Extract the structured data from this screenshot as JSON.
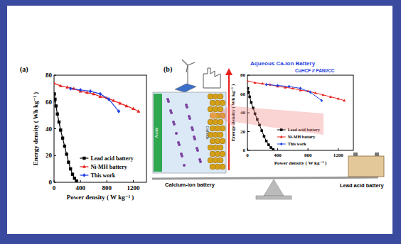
{
  "chart_data": [
    {
      "type": "line",
      "panel_label": "(a)",
      "x_label": "Power density ( W kg⁻¹ )",
      "y_label": "Energy density ( Wh kg⁻¹ )",
      "xlim": [
        0,
        1400
      ],
      "xticks": [
        0,
        400,
        800,
        1200
      ],
      "ylim": [
        0,
        80
      ],
      "yticks": [
        0,
        20,
        40,
        60,
        80
      ],
      "grid": false,
      "legend": "lower left",
      "series": [
        {
          "name": "Lead acid battery",
          "color": "#000000",
          "marker": "square",
          "x": [
            5,
            15,
            30,
            50,
            75,
            100,
            130,
            160,
            190,
            220,
            250,
            280,
            310,
            340
          ],
          "values": [
            66,
            62,
            57,
            51,
            45,
            39,
            33,
            27,
            21,
            15,
            10,
            6,
            3,
            1
          ]
        },
        {
          "name": "Ni-MH battery",
          "color": "#e8211c",
          "marker": "triangle",
          "x": [
            0,
            100,
            200,
            300,
            400,
            500,
            600,
            700,
            800,
            900,
            1000,
            1100,
            1200,
            1280
          ],
          "values": [
            74,
            72,
            71,
            70,
            68,
            67,
            66,
            64,
            63,
            61,
            59,
            57,
            55,
            53
          ]
        },
        {
          "name": "This work",
          "color": "#1f3fe0",
          "marker": "diamond",
          "x": [
            250,
            400,
            550,
            700,
            830,
            980
          ],
          "values": [
            70,
            69,
            68,
            66,
            62,
            53
          ]
        }
      ]
    },
    {
      "type": "line",
      "title": "Aqueous Ca-ion Battery",
      "subtitle": "CuHCF // PANI/CC",
      "x_label": "Power density ( W kg⁻¹ )",
      "y_label": "Energy density ( Wh kg⁻¹ )",
      "xlim": [
        0,
        1400
      ],
      "xticks": [
        0,
        400,
        800,
        1200
      ],
      "ylim": [
        0,
        80
      ],
      "yticks": [
        0,
        20,
        40,
        60,
        80
      ],
      "grid": false,
      "legend": "lower left",
      "series": [
        {
          "name": "Lead acid battery",
          "color": "#000000",
          "marker": "square",
          "x": [
            5,
            15,
            30,
            50,
            75,
            100,
            130,
            160,
            190,
            220,
            250,
            280,
            310,
            340
          ],
          "values": [
            66,
            62,
            57,
            51,
            45,
            39,
            33,
            27,
            21,
            15,
            10,
            6,
            3,
            1
          ]
        },
        {
          "name": "Ni-MH battery",
          "color": "#e8211c",
          "marker": "triangle",
          "x": [
            0,
            100,
            200,
            300,
            400,
            500,
            600,
            700,
            800,
            900,
            1000,
            1100,
            1200,
            1280
          ],
          "values": [
            74,
            72,
            71,
            70,
            68,
            67,
            66,
            64,
            63,
            61,
            59,
            57,
            55,
            53
          ]
        },
        {
          "name": "This work",
          "color": "#1f3fe0",
          "marker": "diamond",
          "x": [
            250,
            400,
            550,
            700,
            830,
            980
          ],
          "values": [
            70,
            69,
            68,
            66,
            62,
            53
          ]
        }
      ]
    }
  ],
  "diagram": {
    "panel_label": "(b)",
    "anode": "Anode",
    "cathode": "Cathode",
    "left_label": "Calcium-ion battery",
    "right_label": "Lead acid battery"
  }
}
